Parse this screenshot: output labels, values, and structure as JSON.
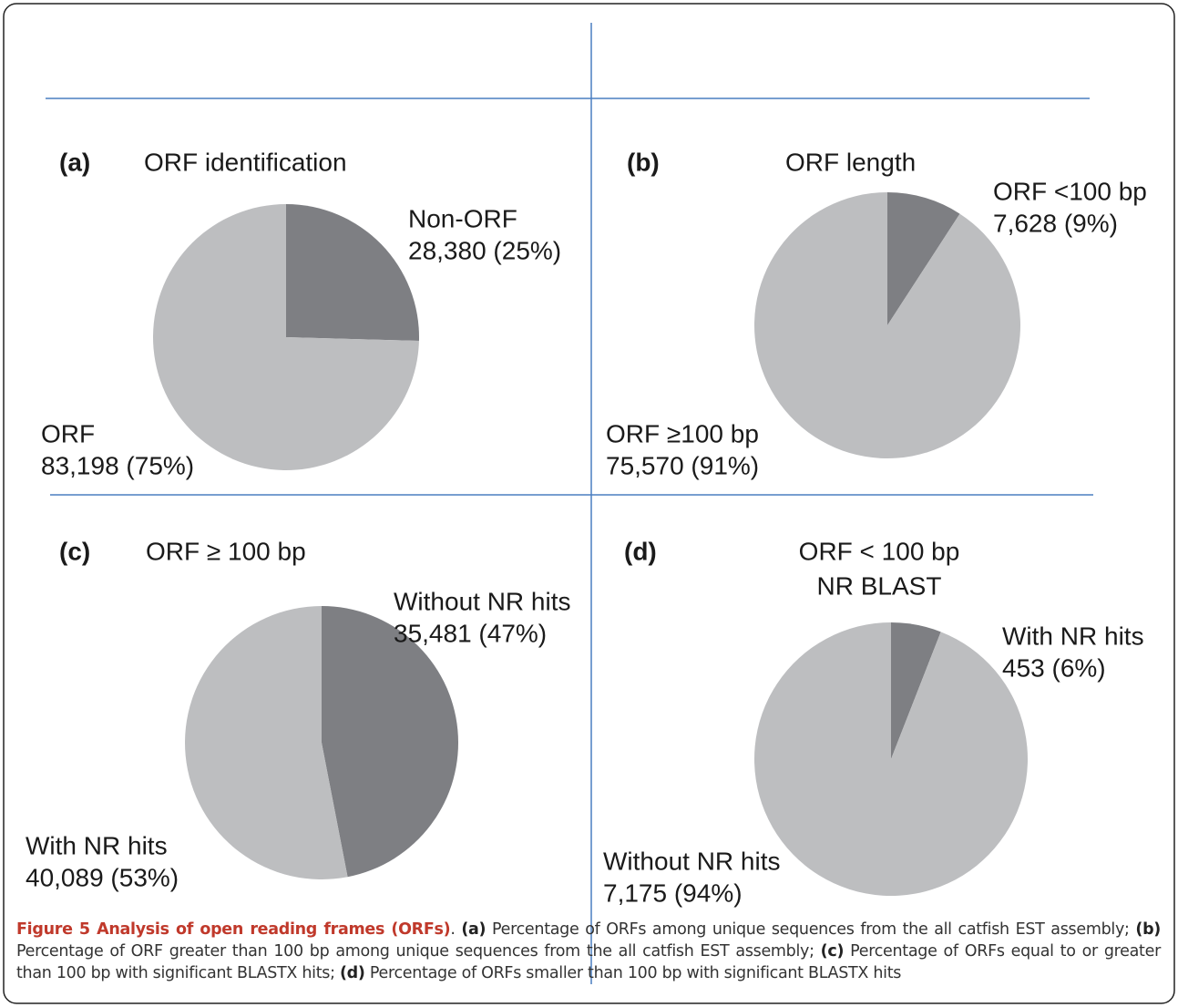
{
  "chart_data": [
    {
      "type": "pie",
      "panel": "(a)",
      "title": "ORF identification",
      "categories": [
        "Non-ORF",
        "ORF"
      ],
      "values": [
        28380,
        83198
      ],
      "value_labels": [
        "28,380 (25%)",
        "83,198 (75%)"
      ],
      "colors": [
        "#7e7f83",
        "#bdbec0"
      ]
    },
    {
      "type": "pie",
      "panel": "(b)",
      "title": "ORF length",
      "categories": [
        "ORF <100 bp",
        "ORF ≥100 bp"
      ],
      "values": [
        7628,
        75570
      ],
      "value_labels": [
        "7,628 (9%)",
        "75,570 (91%)"
      ],
      "colors": [
        "#7e7f83",
        "#bdbec0"
      ]
    },
    {
      "type": "pie",
      "panel": "(c)",
      "title": "ORF ≥ 100 bp",
      "categories": [
        "Without NR hits",
        "With NR hits"
      ],
      "values": [
        35481,
        40089
      ],
      "value_labels": [
        "35,481 (47%)",
        "40,089 (53%)"
      ],
      "colors": [
        "#7e7f83",
        "#bdbec0"
      ]
    },
    {
      "type": "pie",
      "panel": "(d)",
      "title": "ORF < 100 bp",
      "subtitle": "NR BLAST",
      "categories": [
        "With NR hits",
        "Without NR hits"
      ],
      "values": [
        453,
        7175
      ],
      "value_labels": [
        "453 (6%)",
        "7,175 (94%)"
      ],
      "colors": [
        "#7e7f83",
        "#bdbec0"
      ]
    }
  ],
  "caption": {
    "segments": [
      {
        "text": "Figure 5 Analysis of open reading frames (ORFs)",
        "bold": true
      },
      {
        "text": ". ",
        "bold": false
      },
      {
        "text": "(a)",
        "bold": true
      },
      {
        "text": " Percentage of ORFs among unique sequences from the all catfish EST assembly; ",
        "bold": false
      },
      {
        "text": "(b)",
        "bold": true
      },
      {
        "text": " Percentage of ORF greater than 100 bp among unique sequences from the all catfish EST assembly; ",
        "bold": false
      },
      {
        "text": "(c)",
        "bold": true
      },
      {
        "text": " Percentage of ORFs equal to or greater than 100 bp with significant BLASTX hits; ",
        "bold": false
      },
      {
        "text": "(d)",
        "bold": true
      },
      {
        "text": " Percentage of ORFs smaller than 100 bp with significant BLASTX hits",
        "bold": false
      }
    ]
  }
}
